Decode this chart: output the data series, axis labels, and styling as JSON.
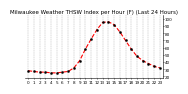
{
  "title": "Milwaukee Weather THSW Index per Hour (F) (Last 24 Hours)",
  "x": [
    0,
    1,
    2,
    3,
    4,
    5,
    6,
    7,
    8,
    9,
    10,
    11,
    12,
    13,
    14,
    15,
    16,
    17,
    18,
    19,
    20,
    21,
    22,
    23
  ],
  "y": [
    28,
    27,
    26,
    26,
    25,
    25,
    26,
    27,
    32,
    42,
    58,
    72,
    85,
    95,
    96,
    92,
    82,
    70,
    58,
    48,
    42,
    38,
    34,
    32
  ],
  "line_color": "#ff0000",
  "marker_color": "#000000",
  "grid_color": "#888888",
  "bg_color": "#ffffff",
  "yticks": [
    20,
    30,
    40,
    50,
    60,
    70,
    80,
    90,
    100
  ],
  "ylim": [
    18,
    105
  ],
  "xlim": [
    -0.5,
    23.5
  ],
  "title_fontsize": 4.0,
  "tick_fontsize": 3.0,
  "linewidth": 0.8,
  "markersize": 1.5,
  "linestyle": "--"
}
